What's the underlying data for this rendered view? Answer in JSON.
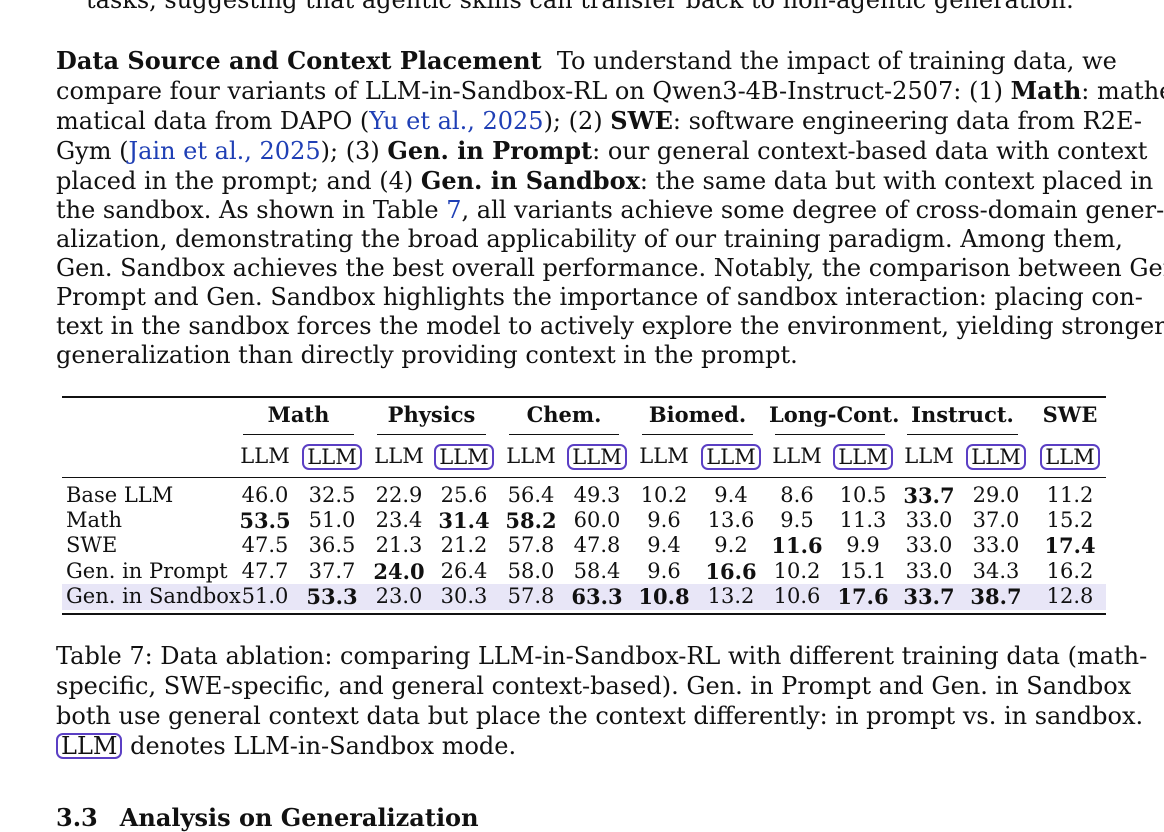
{
  "prev_line": "tasks, suggesting that agentic skills can transfer back to non-agentic generation.",
  "paragraph": {
    "heading": "Data Source and Context Placement",
    "l1_text": "To understand the impact of training data, we",
    "l2_a": "compare four variants of LLM-in-Sandbox-RL on Qwen3-4B-Instruct-2507: (1)",
    "l2_b": "Math",
    "l2_c": ": mathe-",
    "l3_a": "matical data from DAPO (",
    "l3_cite": "Yu et al., 2025",
    "l3_b": "); (2)",
    "l3_c": "SWE",
    "l3_d": ": software engineering data from R2E-",
    "l4_a": "Gym (",
    "l4_cite": "Jain et al., 2025",
    "l4_b": "); (3)",
    "l4_c": "Gen. in Prompt",
    "l4_d": ": our general context-based data with context",
    "l5_a": "placed in the prompt; and (4)",
    "l5_b": "Gen. in Sandbox",
    "l5_c": ": the same data but with context placed in",
    "l6_a": "the sandbox. As shown in Table",
    "l6_ref": "7",
    "l6_b": ", all variants achieve some degree of cross-domain gener-",
    "l7": "alization, demonstrating the broad applicability of our training paradigm. Among them,",
    "l8": "Gen. Sandbox achieves the best overall performance. Notably, the comparison between Gen.",
    "l9": "Prompt and Gen. Sandbox highlights the importance of sandbox interaction: placing con-",
    "l10": "text in the sandbox forces the model to actively explore the environment, yielding stronger",
    "l11": "generalization than directly providing context in the prompt."
  },
  "table": {
    "groups": [
      "Math",
      "Physics",
      "Chem.",
      "Biomed.",
      "Long-Cont.",
      "Instruct.",
      "SWE"
    ],
    "mode_plain": "LLM",
    "mode_boxed": "LLM",
    "rows": [
      {
        "label": "Base LLM",
        "values": [
          "46.0",
          "32.5",
          "22.9",
          "25.6",
          "56.4",
          "49.3",
          "10.2",
          "9.4",
          "8.6",
          "10.5",
          "33.7",
          "29.0",
          "11.2"
        ],
        "bold": [
          false,
          false,
          false,
          false,
          false,
          false,
          false,
          false,
          false,
          false,
          true,
          false,
          false
        ]
      },
      {
        "label": "Math",
        "values": [
          "53.5",
          "51.0",
          "23.4",
          "31.4",
          "58.2",
          "60.0",
          "9.6",
          "13.6",
          "9.5",
          "11.3",
          "33.0",
          "37.0",
          "15.2"
        ],
        "bold": [
          true,
          false,
          false,
          true,
          true,
          false,
          false,
          false,
          false,
          false,
          false,
          false,
          false
        ]
      },
      {
        "label": "SWE",
        "values": [
          "47.5",
          "36.5",
          "21.3",
          "21.2",
          "57.8",
          "47.8",
          "9.4",
          "9.2",
          "11.6",
          "9.9",
          "33.0",
          "33.0",
          "17.4"
        ],
        "bold": [
          false,
          false,
          false,
          false,
          false,
          false,
          false,
          false,
          true,
          false,
          false,
          false,
          true
        ]
      },
      {
        "label": "Gen. in Prompt",
        "values": [
          "47.7",
          "37.7",
          "24.0",
          "26.4",
          "58.0",
          "58.4",
          "9.6",
          "16.6",
          "10.2",
          "15.1",
          "33.0",
          "34.3",
          "16.2"
        ],
        "bold": [
          false,
          false,
          true,
          false,
          false,
          false,
          false,
          true,
          false,
          false,
          false,
          false,
          false
        ]
      },
      {
        "label": "Gen. in Sandbox",
        "values": [
          "51.0",
          "53.3",
          "23.0",
          "30.3",
          "57.8",
          "63.3",
          "10.8",
          "13.2",
          "10.6",
          "17.6",
          "33.7",
          "38.7",
          "12.8"
        ],
        "bold": [
          false,
          true,
          false,
          false,
          false,
          true,
          true,
          false,
          false,
          true,
          true,
          true,
          false
        ]
      }
    ],
    "highlight_color": "#e8e6f7",
    "box_color": "#5b3fc4"
  },
  "caption": {
    "c1": "Table 7: Data ablation: comparing LLM-in-Sandbox-RL with different training data (math-",
    "c2": "specific, SWE-specific, and general context-based). Gen. in Prompt and Gen. in Sandbox",
    "c3": "both use general context data but place the context differently: in prompt vs. in sandbox.",
    "c4_box": "LLM",
    "c4_text": "denotes LLM-in-Sandbox mode."
  },
  "next_section": {
    "number": "3.3",
    "title": "Analysis on Generalization"
  }
}
